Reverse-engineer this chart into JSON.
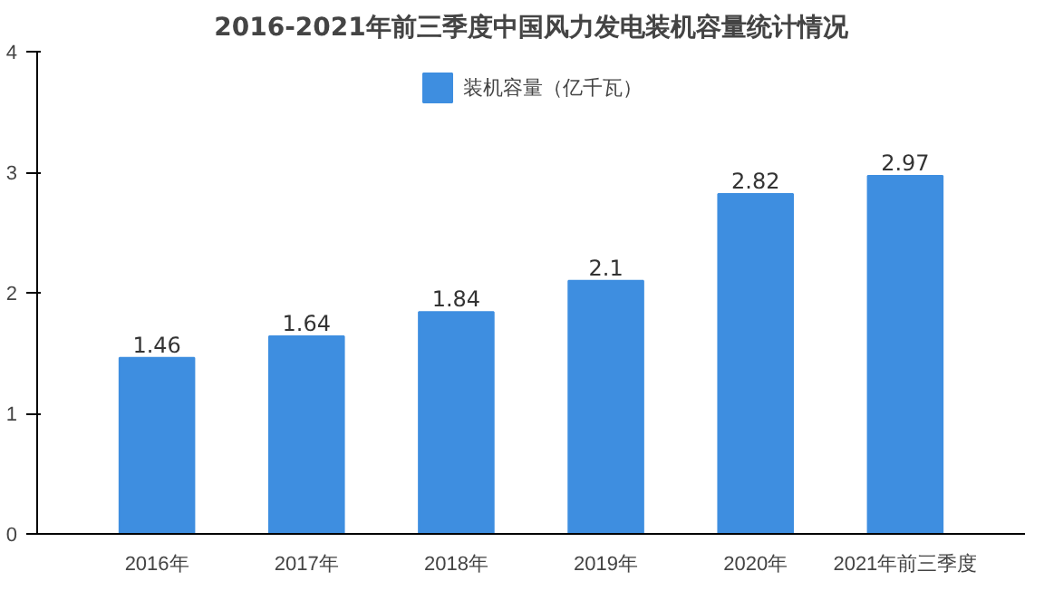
{
  "chart_data": {
    "type": "bar",
    "title": "2016-2021年前三季度中国风力发电装机容量统计情况",
    "categories": [
      "2016年",
      "2017年",
      "2018年",
      "2019年",
      "2020年",
      "2021年前三季度"
    ],
    "series": [
      {
        "name": "装机容量（亿千瓦）",
        "color": "#3e8ee0",
        "values": [
          1.46,
          1.64,
          1.84,
          2.1,
          2.82,
          2.97
        ]
      }
    ],
    "ylim": [
      0,
      4
    ],
    "yticks": [
      0,
      1,
      2,
      3,
      4
    ],
    "grid": false,
    "legend": "top",
    "data_labels": true
  }
}
